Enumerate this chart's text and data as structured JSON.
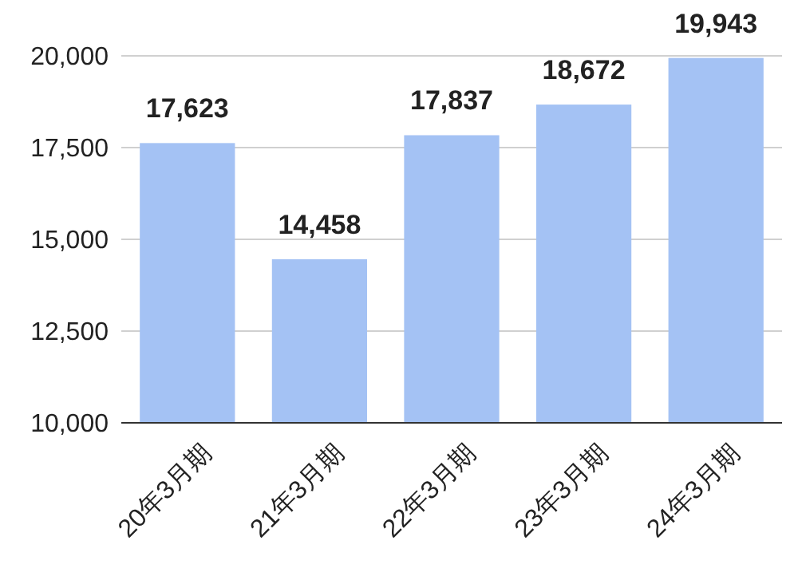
{
  "chart_data": {
    "type": "bar",
    "categories": [
      "20年3月期",
      "21年3月期",
      "22年3月期",
      "23年3月期",
      "24年3月期"
    ],
    "values": [
      17623,
      14458,
      17837,
      18672,
      19943
    ],
    "color": "#a4c2f4",
    "ylim": [
      10000,
      20000
    ],
    "yticks": [
      {
        "value": 10000,
        "label": "10,000"
      },
      {
        "value": 12500,
        "label": "12,500"
      },
      {
        "value": 15000,
        "label": "15,000"
      },
      {
        "value": 17500,
        "label": "17,500"
      },
      {
        "value": 20000,
        "label": "20,000"
      }
    ],
    "grid": "y",
    "value_labels": [
      "17,623",
      "14,458",
      "17,837",
      "18,672",
      "19,943"
    ]
  }
}
